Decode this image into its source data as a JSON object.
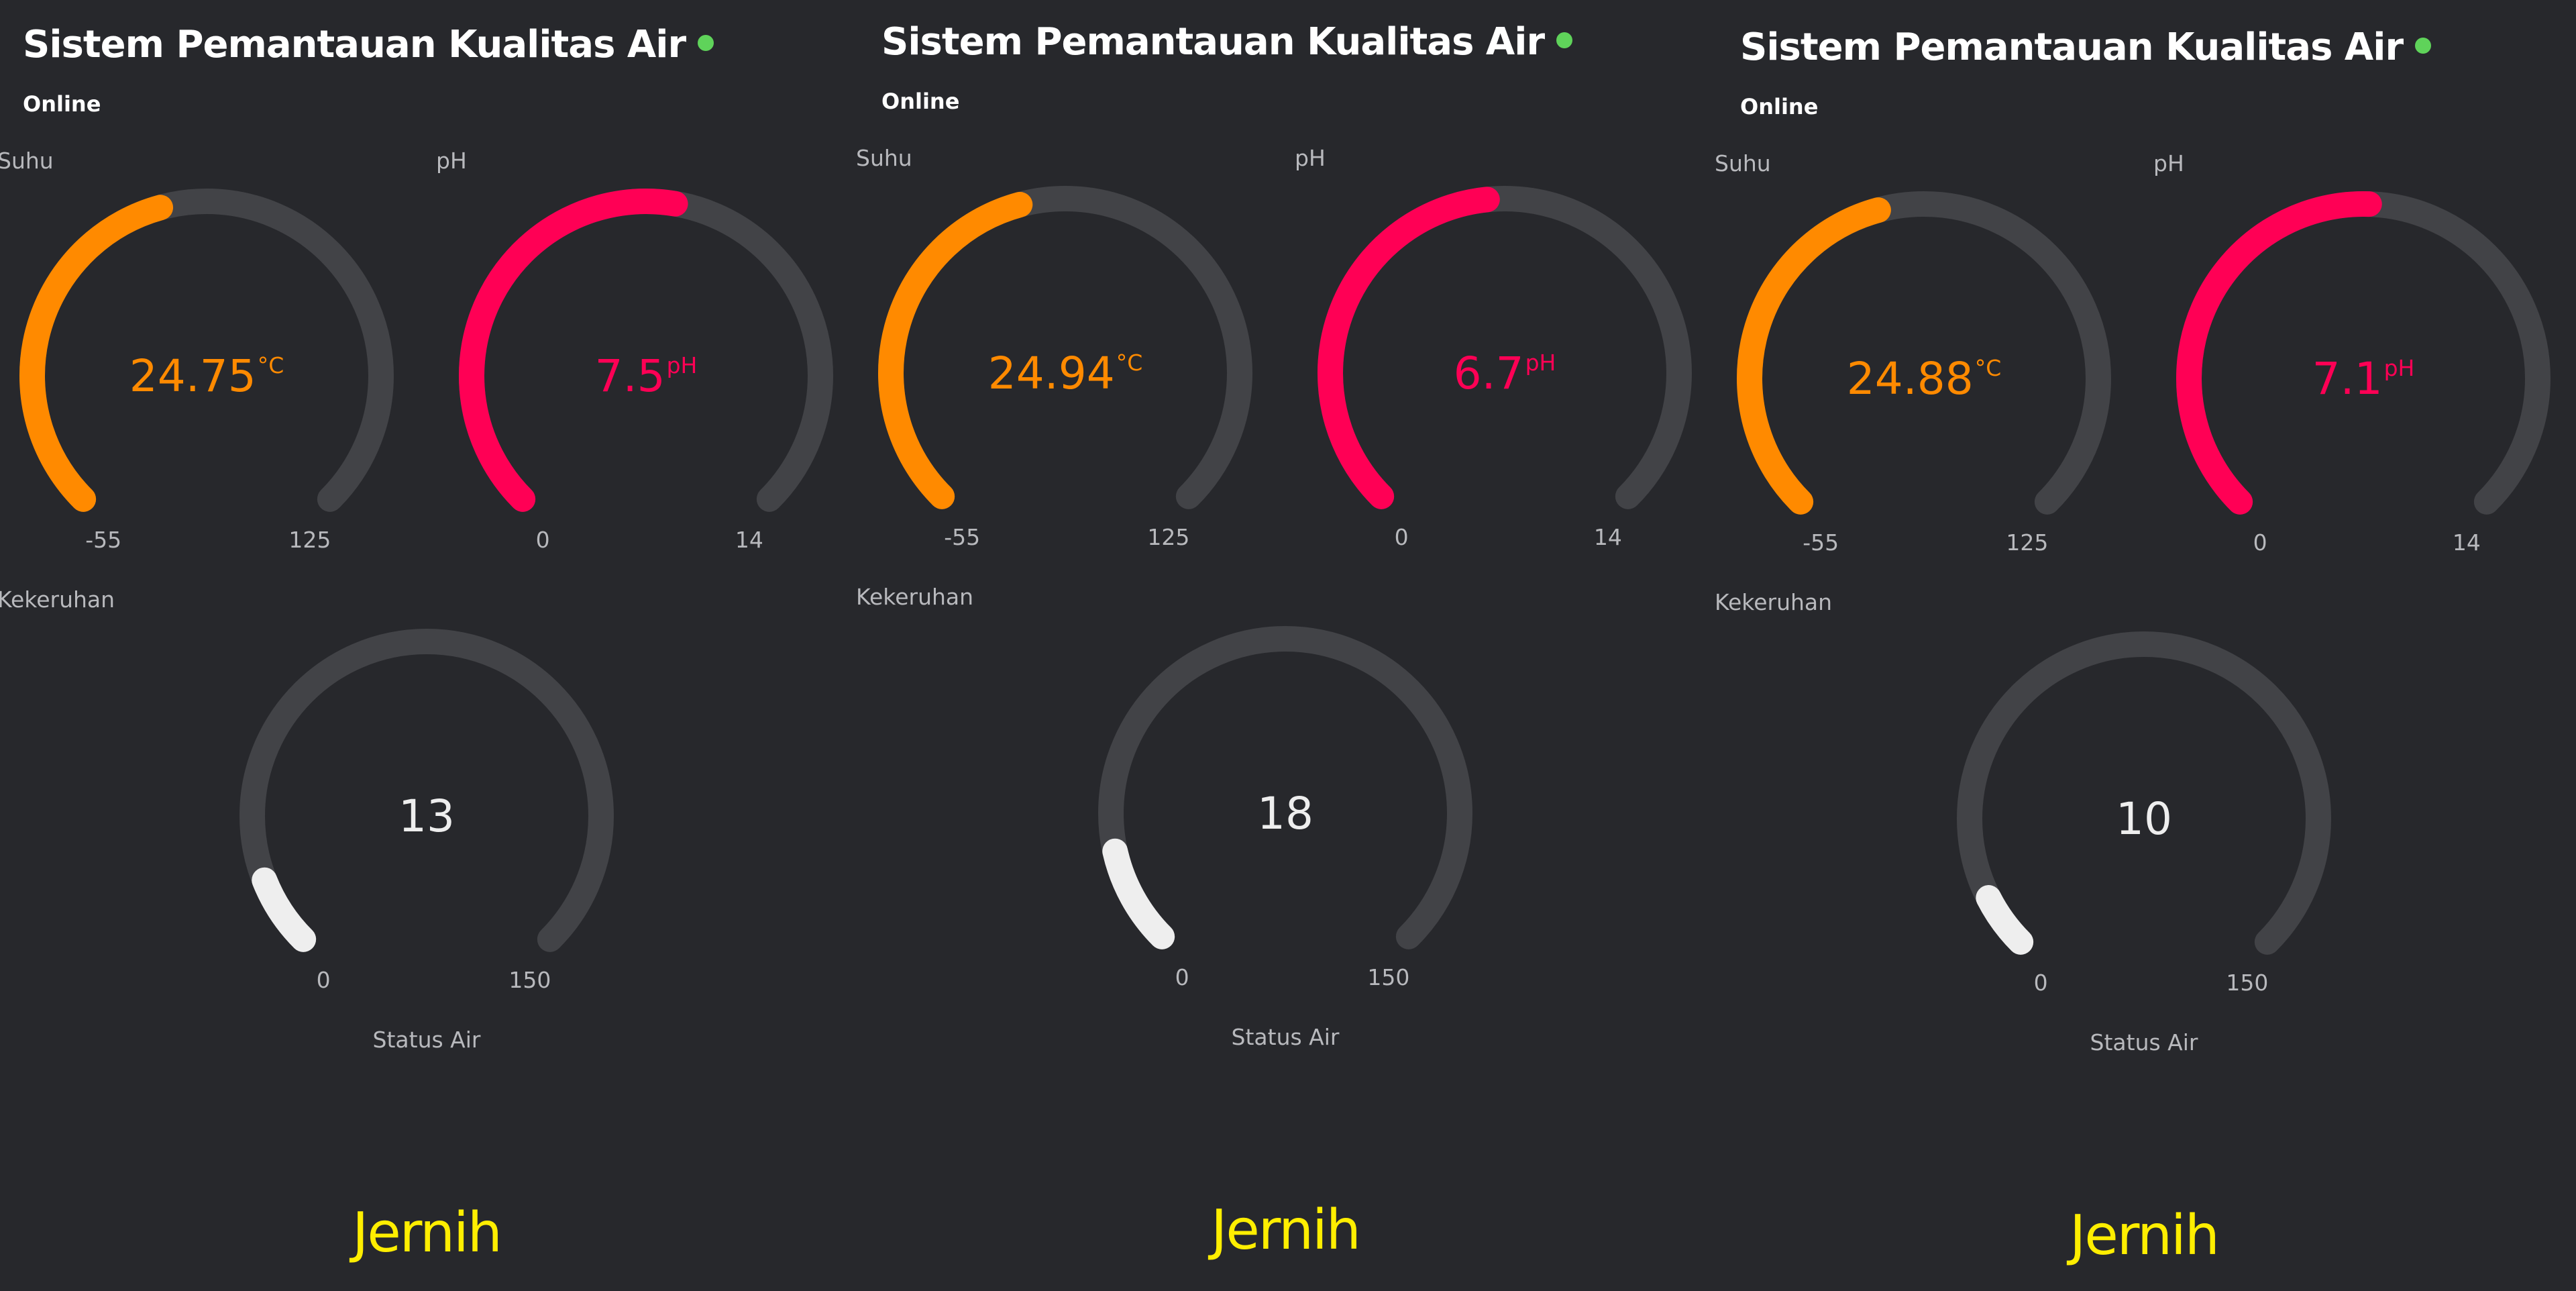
{
  "colors": {
    "background": "#27282c",
    "track": "#424347",
    "temperature": "#ff8a00",
    "ph": "#ff0055",
    "turbidity": "#eeeeee",
    "online_dot": "#5fd35a",
    "water_status": "#ffee00"
  },
  "gauge_sweep_degrees": 270,
  "panels": [
    {
      "title": "Sistem Pemantauan Kualitas Air",
      "status": "Online",
      "temperature": {
        "label": "Suhu",
        "value": 24.75,
        "display": "24.75",
        "unit": "°C",
        "min": -55,
        "max": 125,
        "min_label": "-55",
        "max_label": "125"
      },
      "ph": {
        "label": "pH",
        "value": 7.5,
        "display": "7.5",
        "unit": "pH",
        "min": 0,
        "max": 14,
        "min_label": "0",
        "max_label": "14"
      },
      "turbidity": {
        "label": "Kekeruhan",
        "value": 13,
        "display": "13",
        "unit": "",
        "min": 0,
        "max": 150,
        "min_label": "0",
        "max_label": "150"
      },
      "water_status": {
        "label": "Status Air",
        "value": "Jernih"
      }
    },
    {
      "title": "Sistem Pemantauan Kualitas Air",
      "status": "Online",
      "temperature": {
        "label": "Suhu",
        "value": 24.94,
        "display": "24.94",
        "unit": "°C",
        "min": -55,
        "max": 125,
        "min_label": "-55",
        "max_label": "125"
      },
      "ph": {
        "label": "pH",
        "value": 6.7,
        "display": "6.7",
        "unit": "pH",
        "min": 0,
        "max": 14,
        "min_label": "0",
        "max_label": "14"
      },
      "turbidity": {
        "label": "Kekeruhan",
        "value": 18,
        "display": "18",
        "unit": "",
        "min": 0,
        "max": 150,
        "min_label": "0",
        "max_label": "150"
      },
      "water_status": {
        "label": "Status Air",
        "value": "Jernih"
      }
    },
    {
      "title": "Sistem Pemantauan Kualitas Air",
      "status": "Online",
      "temperature": {
        "label": "Suhu",
        "value": 24.88,
        "display": "24.88",
        "unit": "°C",
        "min": -55,
        "max": 125,
        "min_label": "-55",
        "max_label": "125"
      },
      "ph": {
        "label": "pH",
        "value": 7.1,
        "display": "7.1",
        "unit": "pH",
        "min": 0,
        "max": 14,
        "min_label": "0",
        "max_label": "14"
      },
      "turbidity": {
        "label": "Kekeruhan",
        "value": 10,
        "display": "10",
        "unit": "",
        "min": 0,
        "max": 150,
        "min_label": "0",
        "max_label": "150"
      },
      "water_status": {
        "label": "Status Air",
        "value": "Jernih"
      }
    }
  ]
}
